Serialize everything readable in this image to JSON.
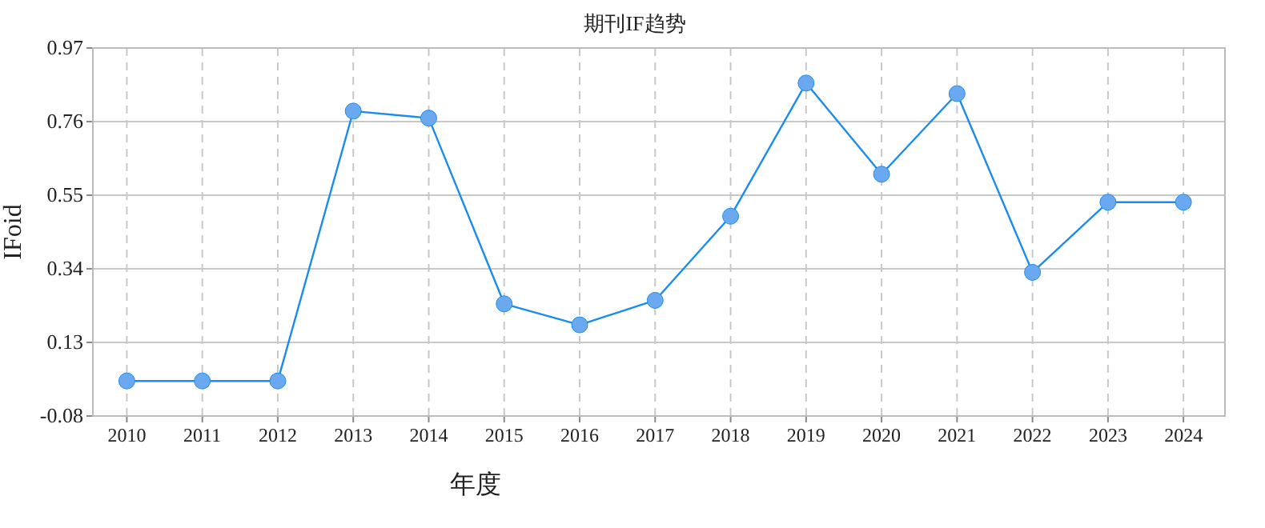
{
  "chart_data": {
    "type": "line",
    "title": "期刊IF趋势",
    "xlabel": "年度",
    "ylabel": "IFoid",
    "categories": [
      "2010",
      "2011",
      "2012",
      "2013",
      "2014",
      "2015",
      "2016",
      "2017",
      "2018",
      "2019",
      "2020",
      "2021",
      "2022",
      "2023",
      "2024"
    ],
    "series": [
      {
        "color": "#1a8cf0",
        "values": [
          0.02,
          0.02,
          0.02,
          0.79,
          0.77,
          0.24,
          0.18,
          0.25,
          0.49,
          0.87,
          0.61,
          0.84,
          0.33,
          0.53,
          0.53
        ]
      }
    ],
    "ylim": [
      -0.08,
      0.97
    ],
    "yticks": [
      -0.08,
      0.13,
      0.34,
      0.55,
      0.76,
      0.97
    ],
    "grid": true,
    "marker": "circle",
    "line_style": "solid"
  }
}
